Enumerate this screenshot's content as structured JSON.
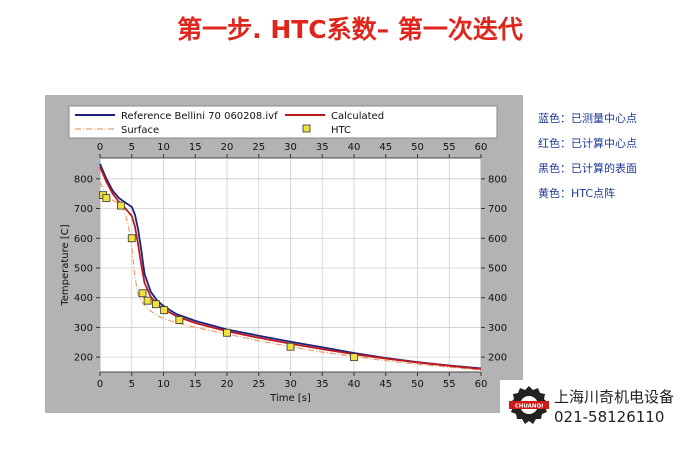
{
  "slide": {
    "title": "第一步. HTC系数– 第一次迭代"
  },
  "notes": [
    "蓝色：已测量中心点",
    "红色：已计算中心点",
    "黑色：已计算的表面",
    "黄色：HTC点阵"
  ],
  "company": {
    "name": "上海川奇机电设备",
    "phone": "021-58126110",
    "logo_text": "CHUANQI"
  },
  "chart_data": {
    "type": "line",
    "xlabel": "Time [s]",
    "ylabel": "Temperature [C]",
    "xlim": [
      0,
      60
    ],
    "ylim": [
      150,
      870
    ],
    "xticks": [
      0,
      5,
      10,
      15,
      20,
      25,
      30,
      35,
      40,
      45,
      50,
      55,
      60
    ],
    "yticks": [
      200,
      300,
      400,
      500,
      600,
      700,
      800
    ],
    "grid": true,
    "legend_position": "top",
    "series": [
      {
        "name": "Reference Bellini 70 060208.ivf",
        "color": "#1a237e",
        "style": "solid",
        "x": [
          0,
          1,
          2,
          3,
          4,
          5,
          5.5,
          6,
          6.5,
          7,
          8,
          9,
          10,
          12,
          15,
          20,
          25,
          30,
          35,
          40,
          45,
          50,
          55,
          60
        ],
        "y": [
          850,
          800,
          760,
          735,
          720,
          705,
          680,
          630,
          560,
          480,
          420,
          390,
          372,
          345,
          322,
          293,
          272,
          252,
          233,
          214,
          197,
          183,
          172,
          162
        ]
      },
      {
        "name": "Calculated",
        "color": "#c0181c",
        "style": "solid",
        "x": [
          0,
          1,
          2,
          3,
          4,
          5,
          5.5,
          6,
          6.5,
          7,
          8,
          9,
          10,
          12,
          15,
          20,
          25,
          30,
          35,
          40,
          45,
          50,
          55,
          60
        ],
        "y": [
          840,
          790,
          750,
          722,
          700,
          675,
          640,
          580,
          510,
          450,
          403,
          378,
          362,
          338,
          315,
          287,
          265,
          245,
          227,
          210,
          195,
          182,
          171,
          160
        ]
      },
      {
        "name": "Surface",
        "color": "#e8a070",
        "style": "dashdot",
        "x": [
          0,
          1,
          2,
          3,
          3.5,
          4,
          4.5,
          5,
          5.5,
          6,
          6.5,
          7,
          8,
          9,
          10,
          12,
          15,
          20,
          25,
          30,
          35,
          40,
          45,
          50,
          55,
          60
        ],
        "y": [
          790,
          745,
          728,
          718,
          705,
          680,
          640,
          570,
          470,
          410,
          390,
          375,
          355,
          340,
          330,
          316,
          300,
          278,
          255,
          235,
          217,
          202,
          188,
          176,
          166,
          156
        ]
      },
      {
        "name": "HTC",
        "color": "#f0e040",
        "style": "markers",
        "x": [
          0.5,
          1,
          3.3,
          5,
          6.7,
          7.5,
          8.8,
          10.1,
          12.5,
          20,
          30,
          40
        ],
        "y": [
          745,
          735,
          710,
          600,
          415,
          390,
          378,
          358,
          325,
          282,
          235,
          200
        ]
      }
    ]
  }
}
